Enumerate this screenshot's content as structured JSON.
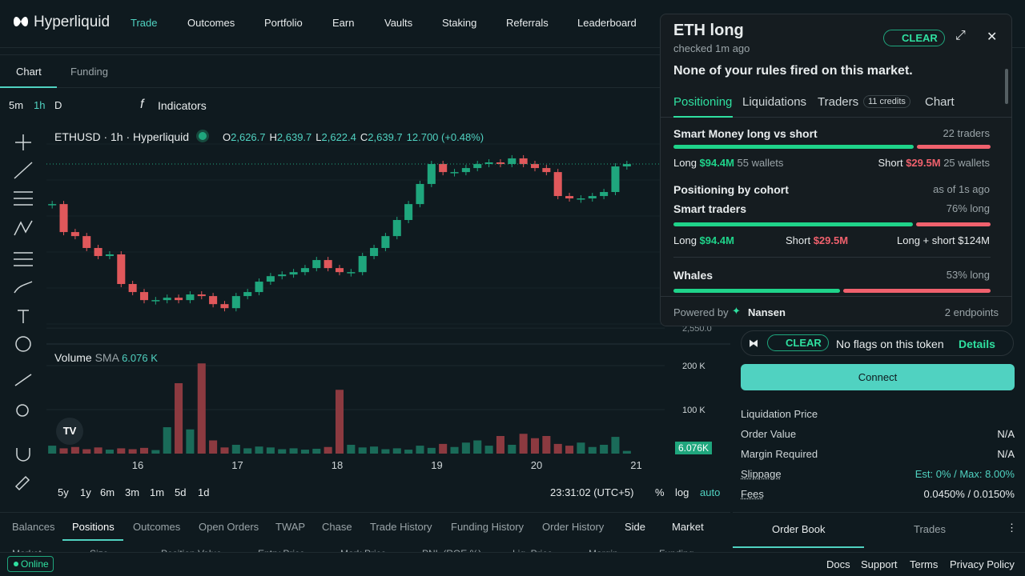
{
  "nav": {
    "logo": "Hyperliquid",
    "links": [
      "Trade",
      "Outcomes",
      "Portfolio",
      "Earn",
      "Vaults",
      "Staking",
      "Referrals",
      "Leaderboard"
    ]
  },
  "chart_tabs": [
    "Chart",
    "Funding"
  ],
  "toolbar": {
    "intervals": [
      "5m",
      "1h",
      "D"
    ],
    "indicators": "Indicators"
  },
  "chart_data": {
    "type": "candlestick",
    "title": "ETHUSD · 1h · Hyperliquid",
    "legend": [
      {
        "key": "O",
        "value": "2,626.7"
      },
      {
        "key": "H",
        "value": "2,639.7"
      },
      {
        "key": "L",
        "value": "2,622.4"
      },
      {
        "key": "C",
        "value": "2,639.7"
      }
    ],
    "change": "12.700 (+0.48%)",
    "closes": [
      2617.8,
      2602.5,
      2600.3,
      2593.8,
      2589.4,
      2590.3,
      2574.1,
      2569.7,
      2565.3,
      2565.3,
      2566.6,
      2565.3,
      2568.4,
      2567.5,
      2563.1,
      2560.9,
      2567.5,
      2569.7,
      2575.4,
      2578.4,
      2579.3,
      2580.6,
      2582.8,
      2587.2,
      2582.8,
      2580.6,
      2580.6,
      2589.4,
      2593.8,
      2600.3,
      2609.1,
      2617.8,
      2628.8,
      2639.7,
      2635.3,
      2635.3,
      2637.5,
      2639.7,
      2640.6,
      2639.7,
      2642.8,
      2639.7,
      2637.5,
      2635.3,
      2622.2,
      2620.9,
      2620.9,
      2622.2,
      2624.4,
      2638.4,
      2639.7
    ],
    "ylim": [
      2541.3,
      2659.4
    ],
    "yticks": [
      {
        "value": 2550,
        "label": "2,550.0"
      }
    ],
    "x_labels": [
      "16",
      "17",
      "18",
      "19",
      "20",
      "21"
    ],
    "volume": {
      "label": "Volume",
      "sma": "SMA",
      "sma_value": "6.076 K",
      "last_label": "6.076K",
      "values": [
        18,
        12,
        15,
        10,
        14,
        9,
        12,
        10,
        13,
        8,
        60,
        160,
        55,
        205,
        30,
        14,
        20,
        12,
        16,
        14,
        10,
        12,
        9,
        11,
        15,
        145,
        20,
        14,
        16,
        10,
        12,
        9,
        18,
        13,
        22,
        15,
        25,
        30,
        18,
        40,
        20,
        45,
        35,
        40,
        22,
        18,
        25,
        15,
        20,
        38,
        6.076
      ],
      "ylim": [
        0,
        240
      ],
      "yticks": [
        {
          "value": 200,
          "label": "200 K"
        },
        {
          "value": 100,
          "label": "100 K"
        }
      ]
    }
  },
  "ranges": [
    "5y",
    "1y",
    "6m",
    "3m",
    "1m",
    "5d",
    "1d"
  ],
  "chart_footer": {
    "time": "23:31:02 (UTC+5)",
    "pct": "%",
    "log": "log",
    "auto": "auto"
  },
  "bottom": {
    "tabs": [
      "Balances",
      "Positions",
      "Outcomes",
      "Open Orders",
      "TWAP",
      "Chase",
      "Trade History",
      "Funding History",
      "Order History"
    ],
    "side": "Side",
    "market": "Market",
    "columns": [
      "Market",
      "Size",
      "Position Value",
      "Entry Price",
      "Mark Price",
      "PNL (ROE %)",
      "Liq. Price",
      "Margin",
      "Funding"
    ]
  },
  "status": {
    "online": "Online",
    "links": [
      "Docs",
      "Support",
      "Terms",
      "Privacy Policy"
    ]
  },
  "right": {
    "badge": "CLEAR",
    "flags": "No flags on this token",
    "details": "Details",
    "connect": "Connect",
    "rows": [
      {
        "label": "Liquidation Price",
        "value": ""
      },
      {
        "label": "Order Value",
        "value": "N/A"
      },
      {
        "label": "Margin Required",
        "value": "N/A"
      },
      {
        "label": "Slippage",
        "value": "Est: 0% / Max: 8.00%"
      },
      {
        "label": "Fees",
        "value": "0.0450% / 0.0150%"
      }
    ],
    "tabs": [
      "Order Book",
      "Trades"
    ]
  },
  "popup": {
    "title": "ETH long",
    "checked": "checked 1m ago",
    "badge": "CLEAR",
    "message": "None of your rules fired on this market.",
    "tabs": [
      "Positioning",
      "Liquidations",
      "Traders",
      "Chart"
    ],
    "credits": "11 credits",
    "smart_money": {
      "title": "Smart Money long vs short",
      "count": "22 traders",
      "long": "Long",
      "long_value": 94.4,
      "long_label": "$94.4M",
      "long_wallets": "55 wallets",
      "short": "Short",
      "short_value": 29.5,
      "short_label": "$29.5M",
      "short_wallets": "25 wallets"
    },
    "cohort": {
      "title": "Positioning by cohort",
      "asof": "as of 1s ago"
    },
    "smart_traders": {
      "title": "Smart traders",
      "pct": 76,
      "pct_label": "76% long",
      "long": "Long",
      "long_label": "$94.4M",
      "short": "Short",
      "short_label": "$29.5M",
      "total": "Long + short $124M"
    },
    "whales": {
      "title": "Whales",
      "pct": 53,
      "pct_label": "53% long"
    },
    "powered": "Powered by",
    "provider": "Nansen",
    "endpoints": "2 endpoints"
  }
}
